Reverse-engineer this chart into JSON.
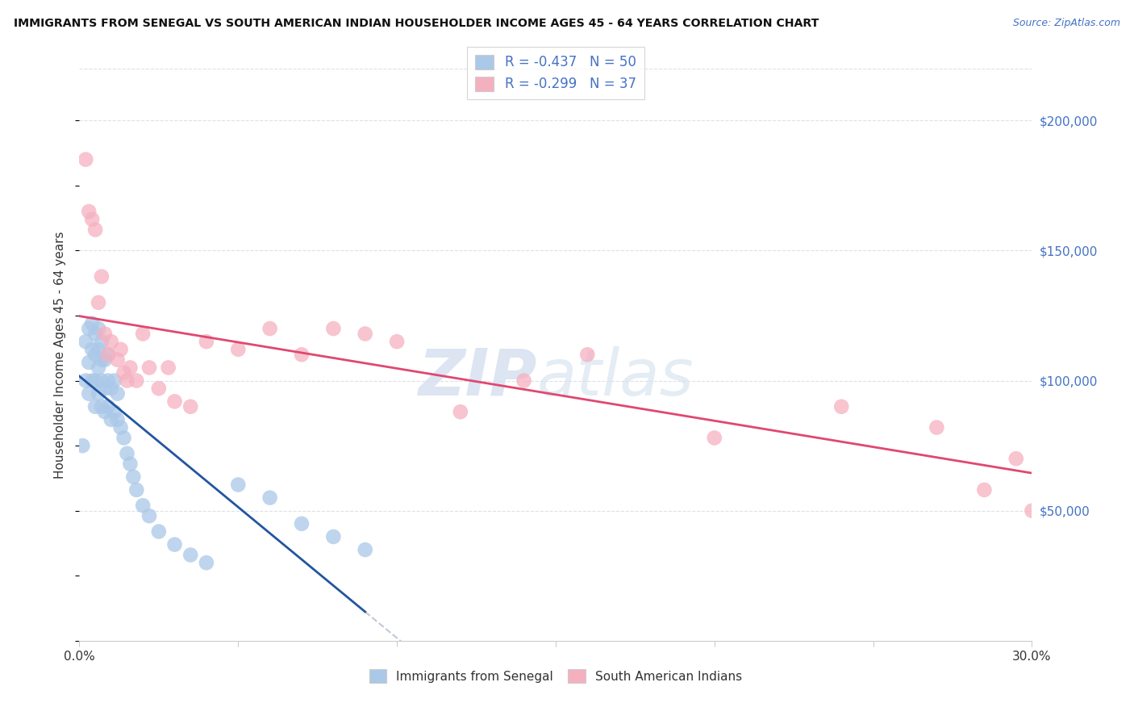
{
  "title": "IMMIGRANTS FROM SENEGAL VS SOUTH AMERICAN INDIAN HOUSEHOLDER INCOME AGES 45 - 64 YEARS CORRELATION CHART",
  "source": "Source: ZipAtlas.com",
  "ylabel": "Householder Income Ages 45 - 64 years",
  "xlim": [
    0.0,
    0.3
  ],
  "ylim": [
    0,
    220000
  ],
  "yticks": [
    50000,
    100000,
    150000,
    200000
  ],
  "ytick_labels": [
    "$50,000",
    "$100,000",
    "$150,000",
    "$200,000"
  ],
  "xticks": [
    0.0,
    0.05,
    0.1,
    0.15,
    0.2,
    0.25,
    0.3
  ],
  "xtick_labels": [
    "0.0%",
    "",
    "",
    "",
    "",
    "",
    "30.0%"
  ],
  "legend_blue_r": "-0.437",
  "legend_blue_n": "50",
  "legend_pink_r": "-0.299",
  "legend_pink_n": "37",
  "blue_scatter_color": "#aac8e8",
  "pink_scatter_color": "#f5b0c0",
  "blue_line_color": "#2255a0",
  "pink_line_color": "#e04870",
  "dashed_line_color": "#c0c8d8",
  "grid_color": "#dde0ea",
  "watermark_color": "#c5d5e8",
  "blue_scatter_x": [
    0.001,
    0.002,
    0.002,
    0.003,
    0.003,
    0.003,
    0.004,
    0.004,
    0.004,
    0.005,
    0.005,
    0.005,
    0.005,
    0.006,
    0.006,
    0.006,
    0.006,
    0.007,
    0.007,
    0.007,
    0.007,
    0.008,
    0.008,
    0.008,
    0.009,
    0.009,
    0.009,
    0.01,
    0.01,
    0.011,
    0.011,
    0.012,
    0.012,
    0.013,
    0.014,
    0.015,
    0.016,
    0.017,
    0.018,
    0.02,
    0.022,
    0.025,
    0.03,
    0.035,
    0.04,
    0.05,
    0.06,
    0.07,
    0.08,
    0.09
  ],
  "blue_scatter_y": [
    75000,
    100000,
    115000,
    95000,
    107000,
    120000,
    100000,
    112000,
    122000,
    90000,
    100000,
    110000,
    118000,
    95000,
    105000,
    112000,
    120000,
    90000,
    100000,
    108000,
    115000,
    88000,
    97000,
    108000,
    90000,
    100000,
    110000,
    85000,
    97000,
    88000,
    100000,
    85000,
    95000,
    82000,
    78000,
    72000,
    68000,
    63000,
    58000,
    52000,
    48000,
    42000,
    37000,
    33000,
    30000,
    60000,
    55000,
    45000,
    40000,
    35000
  ],
  "pink_scatter_x": [
    0.002,
    0.003,
    0.004,
    0.005,
    0.006,
    0.007,
    0.008,
    0.009,
    0.01,
    0.012,
    0.013,
    0.014,
    0.015,
    0.016,
    0.018,
    0.02,
    0.022,
    0.025,
    0.028,
    0.03,
    0.035,
    0.04,
    0.05,
    0.06,
    0.07,
    0.08,
    0.09,
    0.1,
    0.12,
    0.14,
    0.16,
    0.2,
    0.24,
    0.27,
    0.285,
    0.295,
    0.3
  ],
  "pink_scatter_y": [
    185000,
    165000,
    162000,
    158000,
    130000,
    140000,
    118000,
    110000,
    115000,
    108000,
    112000,
    103000,
    100000,
    105000,
    100000,
    118000,
    105000,
    97000,
    105000,
    92000,
    90000,
    115000,
    112000,
    120000,
    110000,
    120000,
    118000,
    115000,
    88000,
    100000,
    110000,
    78000,
    90000,
    82000,
    58000,
    70000,
    50000
  ]
}
